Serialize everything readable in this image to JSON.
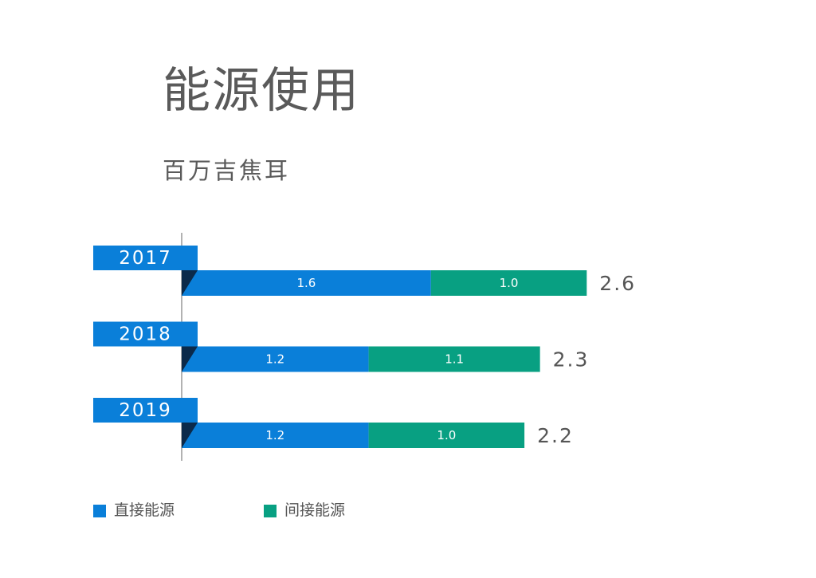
{
  "title": "能源使用",
  "subtitle": "百万吉焦耳",
  "colors": {
    "direct": "#0a7fd9",
    "indirect": "#08a082",
    "tab_shadow": "#0b2a4a",
    "axis": "#666666",
    "text": "#555555"
  },
  "chart_data": {
    "type": "bar",
    "orientation": "horizontal",
    "stacked": true,
    "categories": [
      "2017",
      "2018",
      "2019"
    ],
    "series": [
      {
        "name": "直接能源",
        "values": [
          1.6,
          1.2,
          1.2
        ]
      },
      {
        "name": "间接能源",
        "values": [
          1.0,
          1.1,
          1.0
        ]
      }
    ],
    "totals": [
      "2.6",
      "2.3",
      "2.2"
    ],
    "data_labels": [
      [
        "1.6",
        "1.2",
        "1.2"
      ],
      [
        "1.0",
        "1.1",
        "1.0"
      ]
    ],
    "xlim": [
      0,
      3.2
    ],
    "grid": false,
    "legend_position": "bottom-left"
  },
  "legend": {
    "items": [
      {
        "label": "直接能源"
      },
      {
        "label": "间接能源"
      }
    ]
  }
}
